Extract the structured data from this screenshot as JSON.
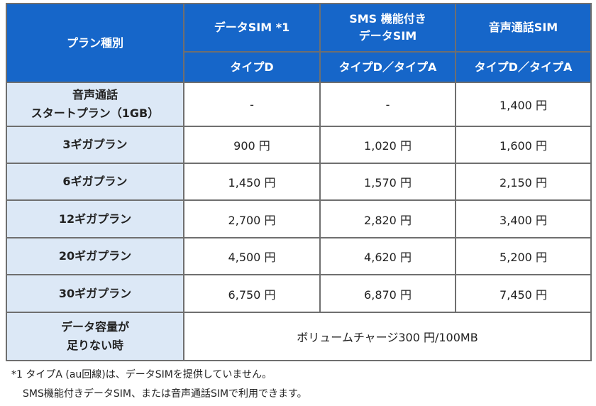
{
  "header": {
    "plan_type": "プラン種別",
    "col1_title": "データSIM *1",
    "col2_title_line1": "SMS 機能付き",
    "col2_title_line2": "データSIM",
    "col3_title": "音声通話SIM",
    "col1_sub": "タイプD",
    "col2_sub": "タイプD／タイプA",
    "col3_sub": "タイプD／タイプA"
  },
  "rows": [
    {
      "label_line1": "音声通話",
      "label_line2": "スタートプラン（1GB）",
      "c1": "-",
      "c2": "-",
      "c3": "1,400 円"
    },
    {
      "label": "3ギガプラン",
      "c1": "900 円",
      "c2": "1,020 円",
      "c3": "1,600 円"
    },
    {
      "label": "6ギガプラン",
      "c1": "1,450 円",
      "c2": "1,570 円",
      "c3": "2,150 円"
    },
    {
      "label": "12ギガプラン",
      "c1": "2,700 円",
      "c2": "2,820 円",
      "c3": "3,400 円"
    },
    {
      "label": "20ギガプラン",
      "c1": "4,500 円",
      "c2": "4,620 円",
      "c3": "5,200 円"
    },
    {
      "label": "30ギガプラン",
      "c1": "6,750 円",
      "c2": "6,870 円",
      "c3": "7,450 円"
    }
  ],
  "shortage": {
    "label_line1": "データ容量が",
    "label_line2": "足りない時",
    "value": "ボリュームチャージ300 円/100MB"
  },
  "footnote": {
    "line1": "*1 タイプA (au回線)は、データSIMを提供していません。",
    "line2": "SMS機能付きデータSIM、または音声通話SIMで利用できます。"
  },
  "colors": {
    "header_bg": "#1666c9",
    "label_bg": "#dce8f6",
    "border": "#6f6f6f"
  }
}
